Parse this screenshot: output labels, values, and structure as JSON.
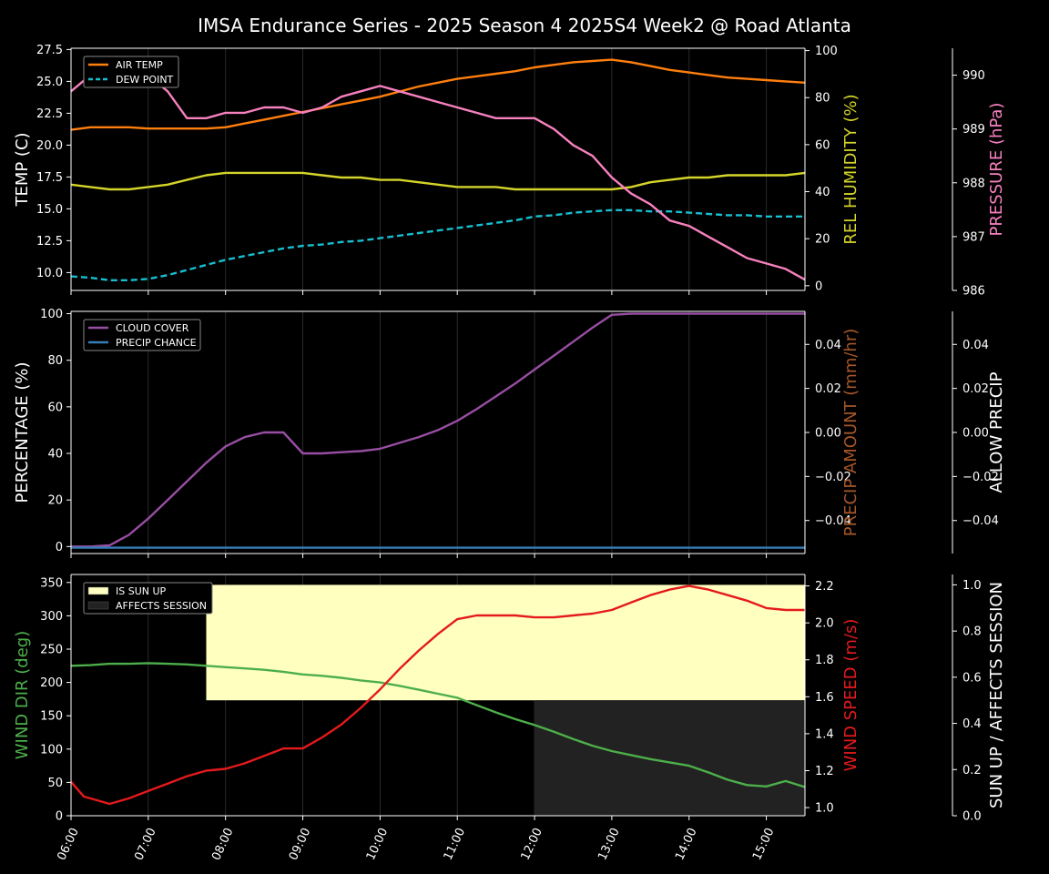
{
  "colors": {
    "background": "#000000",
    "foreground": "#ffffff",
    "air_temp": "#ff7f0e",
    "dew_point": "#17becf",
    "humidity": "#d4d42a",
    "pressure": "#f781bf",
    "cloud": "#984ea3",
    "precip_chance": "#377eb8",
    "precip_amount_label": "#a65628",
    "wind_dir": "#4daf4a",
    "wind_speed": "#e41a1c",
    "sun_up": "#ffffc0",
    "affects_session": "#222222"
  },
  "chart_data": {
    "title": "IMSA Endurance Series - 2025 Season 4 2025S4 Week2 @ Road Atlanta",
    "x_axis": {
      "type": "time",
      "range": [
        "06:00",
        "15:30"
      ],
      "ticks": [
        "06:00",
        "07:00",
        "08:00",
        "09:00",
        "10:00",
        "11:00",
        "12:00",
        "13:00",
        "14:00",
        "15:00"
      ],
      "tick_label_rotation": 65,
      "vertical_gridlines": true
    },
    "panels": [
      {
        "id": "temperature",
        "type": "line",
        "legend": {
          "position": "top-left",
          "entries": [
            "AIR TEMP",
            "DEW POINT"
          ]
        },
        "axes": {
          "left": {
            "label": "TEMP (C)",
            "ylim": [
              8.6,
              27.6
            ],
            "ticks": [
              "10.0",
              "12.5",
              "15.0",
              "17.5",
              "20.0",
              "22.5",
              "25.0",
              "27.5"
            ]
          },
          "right1": {
            "label_parts": [
              {
                "text": "REL HUMIDITY ",
                "color": "humidity"
              },
              {
                "text": "(%)",
                "color": "humidity"
              }
            ],
            "ylim": [
              -2,
              101
            ],
            "ticks": [
              "0",
              "20",
              "40",
              "60",
              "80",
              "100"
            ]
          },
          "right2": {
            "label_parts": [
              {
                "text": "PRESSURE ",
                "color": "pressure"
              },
              {
                "text": "(hPa)",
                "color": "pressure"
              }
            ],
            "ylim": [
              986.0,
              990.5
            ],
            "ticks": [
              "986",
              "987",
              "988",
              "989",
              "990"
            ]
          }
        },
        "series": [
          {
            "name": "AIR TEMP",
            "axis": "left",
            "color": "air_temp",
            "dash": false,
            "x": [
              "06:00",
              "06:15",
              "06:30",
              "06:45",
              "07:00",
              "07:15",
              "07:30",
              "07:45",
              "08:00",
              "08:15",
              "08:30",
              "08:45",
              "09:00",
              "09:15",
              "09:30",
              "09:45",
              "10:00",
              "10:15",
              "10:30",
              "10:45",
              "11:00",
              "11:15",
              "11:30",
              "11:45",
              "12:00",
              "12:15",
              "12:30",
              "12:45",
              "13:00",
              "13:15",
              "13:30",
              "13:45",
              "14:00",
              "14:15",
              "14:30",
              "14:45",
              "15:00",
              "15:15",
              "15:30"
            ],
            "y": [
              21.2,
              21.4,
              21.4,
              21.4,
              21.3,
              21.3,
              21.3,
              21.3,
              21.4,
              21.7,
              22.0,
              22.3,
              22.6,
              22.9,
              23.2,
              23.5,
              23.8,
              24.2,
              24.6,
              24.9,
              25.2,
              25.4,
              25.6,
              25.8,
              26.1,
              26.3,
              26.5,
              26.6,
              26.7,
              26.5,
              26.2,
              25.9,
              25.7,
              25.5,
              25.3,
              25.2,
              25.1,
              25.0,
              24.9
            ]
          },
          {
            "name": "DEW POINT",
            "axis": "left",
            "color": "dew_point",
            "dash": true,
            "x": [
              "06:00",
              "06:15",
              "06:30",
              "06:45",
              "07:00",
              "07:15",
              "07:30",
              "07:45",
              "08:00",
              "08:15",
              "08:30",
              "08:45",
              "09:00",
              "09:15",
              "09:30",
              "09:45",
              "10:00",
              "10:15",
              "10:30",
              "10:45",
              "11:00",
              "11:15",
              "11:30",
              "11:45",
              "12:00",
              "12:15",
              "12:30",
              "12:45",
              "13:00",
              "13:15",
              "13:30",
              "13:45",
              "14:00",
              "14:15",
              "14:30",
              "14:45",
              "15:00",
              "15:15",
              "15:30"
            ],
            "y": [
              9.7,
              9.6,
              9.4,
              9.4,
              9.5,
              9.8,
              10.2,
              10.6,
              11.0,
              11.3,
              11.6,
              11.9,
              12.1,
              12.2,
              12.4,
              12.5,
              12.7,
              12.9,
              13.1,
              13.3,
              13.5,
              13.7,
              13.9,
              14.1,
              14.4,
              14.5,
              14.7,
              14.8,
              14.9,
              14.9,
              14.8,
              14.8,
              14.7,
              14.6,
              14.5,
              14.5,
              14.4,
              14.4,
              14.4
            ]
          },
          {
            "name": "REL HUMIDITY",
            "axis": "right1",
            "color": "humidity",
            "dash": false,
            "x": [
              "06:00",
              "06:15",
              "06:30",
              "06:45",
              "07:00",
              "07:15",
              "07:30",
              "07:45",
              "08:00",
              "08:15",
              "08:30",
              "08:45",
              "09:00",
              "09:15",
              "09:30",
              "09:45",
              "10:00",
              "10:15",
              "10:30",
              "10:45",
              "11:00",
              "11:15",
              "11:30",
              "11:45",
              "12:00",
              "12:15",
              "12:30",
              "12:45",
              "13:00",
              "13:15",
              "13:30",
              "13:45",
              "14:00",
              "14:15",
              "14:30",
              "14:45",
              "15:00",
              "15:15",
              "15:30"
            ],
            "y": [
              43,
              42,
              41,
              41,
              42,
              43,
              45,
              47,
              48,
              48,
              48,
              48,
              48,
              47,
              46,
              46,
              45,
              45,
              44,
              43,
              42,
              42,
              42,
              41,
              41,
              41,
              41,
              41,
              41,
              42,
              44,
              45,
              46,
              46,
              47,
              47,
              47,
              47,
              48
            ]
          },
          {
            "name": "PRESSURE",
            "axis": "right2",
            "color": "pressure",
            "dash": false,
            "x": [
              "06:00",
              "06:15",
              "06:30",
              "06:45",
              "07:00",
              "07:15",
              "07:30",
              "07:45",
              "08:00",
              "08:15",
              "08:30",
              "08:45",
              "09:00",
              "09:15",
              "09:30",
              "09:45",
              "10:00",
              "10:15",
              "10:30",
              "10:45",
              "11:00",
              "11:15",
              "11:30",
              "11:45",
              "12:00",
              "12:15",
              "12:30",
              "12:45",
              "13:00",
              "13:15",
              "13:30",
              "13:45",
              "14:00",
              "14:15",
              "14:30",
              "14:45",
              "15:00",
              "15:15",
              "15:30"
            ],
            "y": [
              989.7,
              990.0,
              990.3,
              990.2,
              990.0,
              989.7,
              989.2,
              989.2,
              989.3,
              989.3,
              989.4,
              989.4,
              989.3,
              989.4,
              989.6,
              989.7,
              989.8,
              989.7,
              989.6,
              989.5,
              989.4,
              989.3,
              989.2,
              989.2,
              989.2,
              989.0,
              988.7,
              988.5,
              988.1,
              987.8,
              987.6,
              987.3,
              987.2,
              987.0,
              986.8,
              986.6,
              986.5,
              986.4,
              986.2
            ]
          }
        ]
      },
      {
        "id": "precipitation",
        "type": "line",
        "legend": {
          "position": "top-left",
          "entries": [
            "CLOUD COVER",
            "PRECIP CHANCE"
          ]
        },
        "axes": {
          "left": {
            "label": "PERCENTAGE (%)",
            "ylim": [
              -3,
              101
            ],
            "ticks": [
              "0",
              "20",
              "40",
              "60",
              "80",
              "100"
            ]
          },
          "right1": {
            "label_parts": [
              {
                "text": "PRECIP AMOUNT ",
                "color": "precip_amount_label"
              },
              {
                "text": "(mm/hr)",
                "color": "precip_amount_label"
              }
            ],
            "ylim": [
              -0.055,
              0.055
            ],
            "ticks": [
              "−0.04",
              "−0.02",
              "0.00",
              "0.02",
              "0.04"
            ]
          },
          "right2": {
            "label_parts": [
              {
                "text": "ALLOW PRECIP",
                "color": "foreground"
              }
            ],
            "ylim": [
              -0.055,
              0.055
            ],
            "ticks": [
              "−0.04",
              "−0.02",
              "0.00",
              "0.02",
              "0.04"
            ]
          }
        },
        "series": [
          {
            "name": "CLOUD COVER",
            "axis": "left",
            "color": "cloud",
            "dash": false,
            "x": [
              "06:00",
              "06:15",
              "06:30",
              "06:45",
              "07:00",
              "07:15",
              "07:30",
              "07:45",
              "08:00",
              "08:15",
              "08:30",
              "08:45",
              "09:00",
              "09:15",
              "09:30",
              "09:45",
              "10:00",
              "10:15",
              "10:30",
              "10:45",
              "11:00",
              "11:15",
              "11:30",
              "11:45",
              "12:00",
              "12:15",
              "12:30",
              "12:45",
              "13:00",
              "13:15",
              "13:30",
              "13:45",
              "14:00",
              "14:15",
              "14:30",
              "14:45",
              "15:00",
              "15:15",
              "15:30"
            ],
            "y": [
              0,
              0,
              0.5,
              5,
              12,
              20,
              28,
              36,
              43,
              47,
              49,
              49,
              40,
              40,
              40.5,
              41,
              42,
              44.5,
              47,
              50,
              54,
              59,
              64.5,
              70,
              76,
              82,
              88,
              94,
              99.5,
              100,
              100,
              100,
              100,
              100,
              100,
              100,
              100,
              100,
              100
            ]
          },
          {
            "name": "PRECIP CHANCE",
            "axis": "left",
            "color": "precip_chance",
            "dash": false,
            "x": [
              "06:00",
              "15:30"
            ],
            "y": [
              -0.5,
              -0.5
            ]
          }
        ]
      },
      {
        "id": "wind",
        "type": "line",
        "legend": {
          "position": "top-left",
          "entries": [
            "IS SUN UP",
            "AFFECTS SESSION"
          ]
        },
        "axes": {
          "left": {
            "label": "WIND DIR (deg)",
            "ylim": [
              0,
              362
            ],
            "ticks": [
              "0",
              "50",
              "100",
              "150",
              "200",
              "250",
              "300",
              "350"
            ]
          },
          "right1": {
            "label_parts": [
              {
                "text": "WIND SPEED ",
                "color": "wind_speed"
              },
              {
                "text": "(m/s)",
                "color": "wind_speed"
              }
            ],
            "ylim": [
              0.956,
              2.262
            ],
            "ticks": [
              "1.0",
              "1.2",
              "1.4",
              "1.6",
              "1.8",
              "2.0",
              "2.2"
            ]
          },
          "right2": {
            "label_parts": [
              {
                "text": "SUN UP / AFFECTS SESSION",
                "color": "foreground"
              }
            ],
            "ylim": [
              0,
              1.045
            ],
            "ticks": [
              "0.0",
              "0.2",
              "0.4",
              "0.6",
              "0.8",
              "1.0"
            ]
          }
        },
        "bands": [
          {
            "name": "IS SUN UP",
            "axis": "right2",
            "color": "sun_up",
            "x": [
              "07:45",
              "15:30"
            ],
            "y": [
              0.5,
              1.0
            ]
          },
          {
            "name": "AFFECTS SESSION",
            "axis": "right2",
            "color": "affects_session",
            "x": [
              "12:00",
              "15:30"
            ],
            "y": [
              0.0,
              0.5
            ]
          }
        ],
        "series": [
          {
            "name": "WIND DIR",
            "axis": "left",
            "color": "wind_dir",
            "dash": false,
            "x": [
              "06:00",
              "06:15",
              "06:30",
              "06:45",
              "07:00",
              "07:15",
              "07:30",
              "07:45",
              "08:00",
              "08:15",
              "08:30",
              "08:45",
              "09:00",
              "09:15",
              "09:30",
              "09:45",
              "10:00",
              "10:15",
              "10:30",
              "10:45",
              "11:00",
              "11:15",
              "11:30",
              "11:45",
              "12:00",
              "12:15",
              "12:30",
              "12:45",
              "13:00",
              "13:15",
              "13:30",
              "13:45",
              "14:00",
              "14:15",
              "14:30",
              "14:45",
              "15:00",
              "15:15",
              "15:30"
            ],
            "y": [
              225,
              226,
              228,
              228,
              229,
              228,
              227,
              225,
              223,
              221,
              219,
              216,
              212,
              210,
              207,
              203,
              200,
              195,
              189,
              183,
              177,
              166,
              155,
              145,
              136,
              126,
              115,
              105,
              97,
              91,
              85,
              80,
              75,
              65,
              54,
              46,
              44,
              52,
              43
            ]
          },
          {
            "name": "WIND SPEED",
            "axis": "right1",
            "color": "wind_speed",
            "dash": false,
            "x": [
              "06:00",
              "06:10",
              "06:30",
              "06:45",
              "07:00",
              "07:15",
              "07:30",
              "07:45",
              "08:00",
              "08:15",
              "08:30",
              "08:45",
              "09:00",
              "09:15",
              "09:30",
              "09:45",
              "10:00",
              "10:15",
              "10:30",
              "10:45",
              "11:00",
              "11:15",
              "11:30",
              "11:45",
              "12:00",
              "12:15",
              "12:30",
              "12:45",
              "13:00",
              "13:15",
              "13:30",
              "13:45",
              "14:00",
              "14:15",
              "14:30",
              "14:45",
              "15:00",
              "15:15",
              "15:30"
            ],
            "y": [
              1.14,
              1.06,
              1.02,
              1.05,
              1.09,
              1.13,
              1.17,
              1.2,
              1.21,
              1.24,
              1.28,
              1.32,
              1.32,
              1.38,
              1.45,
              1.54,
              1.64,
              1.75,
              1.85,
              1.94,
              2.02,
              2.04,
              2.04,
              2.04,
              2.03,
              2.03,
              2.04,
              2.05,
              2.07,
              2.11,
              2.15,
              2.18,
              2.2,
              2.18,
              2.15,
              2.12,
              2.08,
              2.07,
              2.07
            ]
          }
        ]
      }
    ]
  }
}
